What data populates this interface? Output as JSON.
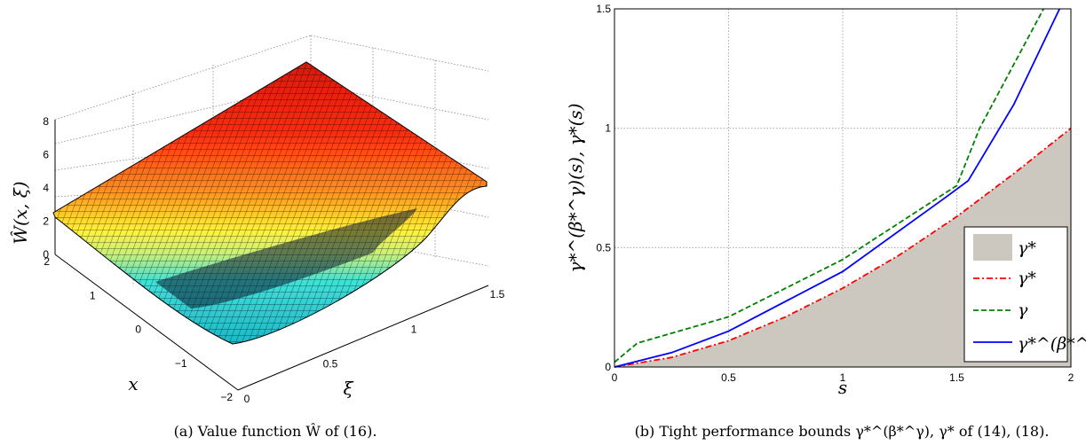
{
  "captions": {
    "left": "(a) Value function Ŵ of (16).",
    "right": "(b) Tight performance bounds γ*^(β*^γ), γ* of (14), (18)."
  },
  "chart_data": [
    {
      "type": "surface",
      "zlabel": "Ŵ(x, ξ)",
      "xlabel": "x",
      "ylabel": "ξ",
      "x_range": [
        -2,
        2
      ],
      "xi_range": [
        0,
        1.5
      ],
      "z_range": [
        0,
        8
      ],
      "x_ticks": [
        "2",
        "1",
        "0",
        "−1",
        "−2"
      ],
      "xi_ticks": [
        "0",
        "0.5",
        "1",
        "1.5"
      ],
      "z_ticks": [
        "0",
        "2",
        "4",
        "6",
        "8"
      ],
      "grid": true,
      "colormap": [
        "#00008f",
        "#00ffff",
        "#ffff00",
        "#ff0000",
        "#800000"
      ]
    },
    {
      "type": "line",
      "xlabel": "s",
      "ylabel": "γ*^(β*^γ)(s), γ*(s)",
      "xlim": [
        0,
        2
      ],
      "ylim": [
        0,
        1.5
      ],
      "x_ticks": [
        "0",
        "0.5",
        "1",
        "1.5",
        "2"
      ],
      "y_ticks": [
        "0",
        "0.5",
        "1",
        "1.5"
      ],
      "grid": true,
      "legend_position": "bottom-right",
      "series": [
        {
          "name": "γ*",
          "style": "area",
          "color": "#ccc8c0",
          "x": [
            0,
            0.25,
            0.5,
            0.75,
            1.0,
            1.25,
            1.5,
            1.75,
            2.0
          ],
          "y": [
            0,
            0.04,
            0.11,
            0.21,
            0.33,
            0.47,
            0.63,
            0.81,
            1.0
          ]
        },
        {
          "name": "γ*",
          "style": "dashdot",
          "color": "#ff0000",
          "x": [
            0,
            0.25,
            0.5,
            0.75,
            1.0,
            1.25,
            1.5,
            1.75,
            2.0
          ],
          "y": [
            0,
            0.04,
            0.11,
            0.21,
            0.33,
            0.47,
            0.63,
            0.81,
            1.0
          ]
        },
        {
          "name": "γ",
          "style": "dashed",
          "color": "#008000",
          "x": [
            0,
            0.1,
            0.5,
            1.0,
            1.5,
            1.6,
            1.88
          ],
          "y": [
            0.02,
            0.1,
            0.21,
            0.45,
            0.76,
            1.0,
            1.5
          ]
        },
        {
          "name": "γ*^(β*^γ)",
          "style": "solid",
          "color": "#0000ff",
          "x": [
            0,
            0.25,
            0.5,
            1.0,
            1.45,
            1.55,
            1.75,
            1.95
          ],
          "y": [
            0,
            0.06,
            0.15,
            0.4,
            0.71,
            0.78,
            1.1,
            1.5
          ]
        }
      ]
    }
  ]
}
